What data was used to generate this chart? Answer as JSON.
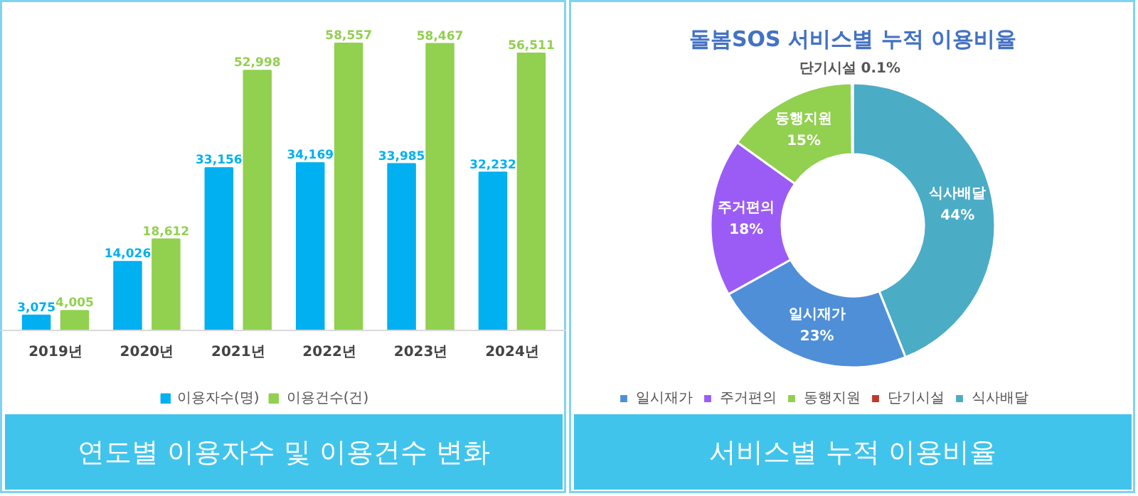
{
  "chart_data": [
    {
      "type": "bar",
      "title": "연도별 이용자수 및 이용건수 변화",
      "categories": [
        "2019년",
        "2020년",
        "2021년",
        "2022년",
        "2023년",
        "2024년"
      ],
      "legend": "bottom",
      "grid": false,
      "series": [
        {
          "name": "이용자수(명)",
          "color": "#00b0f0",
          "values": [
            3075,
            14026,
            33156,
            34169,
            33985,
            32232
          ],
          "value_labels": [
            "3,075",
            "14,026",
            "33,156",
            "34,169",
            "33,985",
            "32,232"
          ]
        },
        {
          "name": "이용건수(건)",
          "color": "#92d050",
          "values": [
            4005,
            18612,
            52998,
            58557,
            58467,
            56511
          ],
          "value_labels": [
            "4,005",
            "18,612",
            "52,998",
            "58,557",
            "58,467",
            "56,511"
          ]
        }
      ]
    },
    {
      "type": "donut",
      "title": "돌봄SOS 서비스별 누적 이용비율",
      "subtitle": "서비스별 누적 이용비율",
      "legend": "bottom",
      "categories": [
        "일시재가",
        "주거편의",
        "동행지원",
        "단기시설",
        "식사배달"
      ],
      "values": [
        23,
        18,
        15,
        0.1,
        44
      ],
      "value_labels": [
        "23%",
        "18%",
        "15%",
        "0.1%",
        "44%"
      ],
      "colors": [
        "#4f8fd8",
        "#9b5cf6",
        "#92d050",
        "#c0392b",
        "#4bacc6"
      ]
    }
  ]
}
